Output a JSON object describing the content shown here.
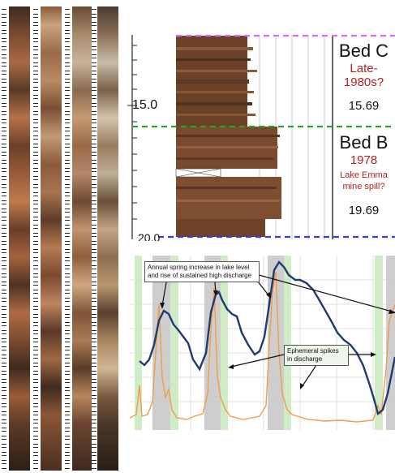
{
  "core_panel": {
    "columns": 4
  },
  "stratigraphy": {
    "depth_labels": [
      "15.0",
      "20.0"
    ],
    "beds": [
      {
        "name": "Bed C",
        "date": "Late-\n1980s?",
        "note": "",
        "depth": "15.69",
        "line_color": "#d26dff"
      },
      {
        "name": "Bed B",
        "date": "1978",
        "note": "Lake Emma\nmine spill?",
        "depth": "19.69",
        "line_color": "#2ca02c"
      }
    ],
    "base_line_color": "#3b3bd6"
  },
  "hydrograph": {
    "lake_level_color": "#1f3b73",
    "discharge_color": "#f39c4a",
    "spring_band_color": "#c9c9c9",
    "spike_band_color": "#cdebc4",
    "annotations": [
      {
        "text": "Annual spring increase in lake level\nand rise of sustained high discharge"
      },
      {
        "text": "Ephemeral spikes\nin discharge"
      }
    ]
  }
}
